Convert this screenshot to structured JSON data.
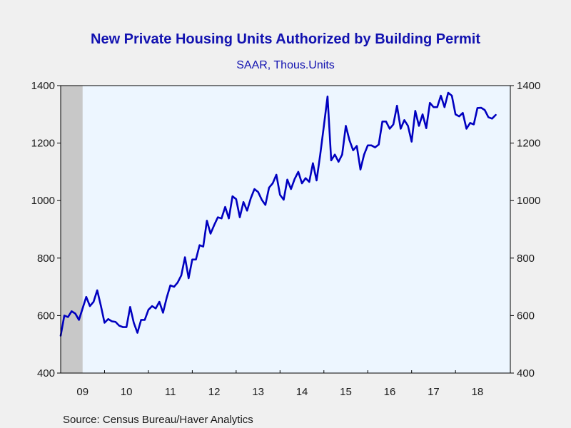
{
  "chart_data": {
    "type": "line",
    "title": "New Private Housing Units Authorized by Building Permit",
    "subtitle": "SAAR, Thous.Units",
    "source": "Source:  Census Bureau/Haver Analytics",
    "ylim": [
      400,
      1400
    ],
    "y_ticks": [
      400,
      600,
      800,
      1000,
      1200,
      1400
    ],
    "y_tick_labels": [
      "400",
      "600",
      "800",
      "1000",
      "1200",
      "1400"
    ],
    "x_range": [
      2009.0,
      2019.25
    ],
    "x_ticks": [
      {
        "label": "09",
        "year": 2009
      },
      {
        "label": "10",
        "year": 2010
      },
      {
        "label": "11",
        "year": 2011
      },
      {
        "label": "12",
        "year": 2012
      },
      {
        "label": "13",
        "year": 2013
      },
      {
        "label": "14",
        "year": 2014
      },
      {
        "label": "15",
        "year": 2015
      },
      {
        "label": "16",
        "year": 2016
      },
      {
        "label": "17",
        "year": 2017
      },
      {
        "label": "18",
        "year": 2018
      }
    ],
    "recession_shading": [
      2009.0,
      2009.5
    ],
    "grid": false,
    "series": [
      {
        "color": "#0000c0",
        "start": "2009-01",
        "frequency": "monthly",
        "values": [
          530,
          600,
          595,
          615,
          607,
          585,
          625,
          665,
          633,
          648,
          688,
          634,
          575,
          588,
          580,
          578,
          565,
          560,
          560,
          630,
          575,
          540,
          585,
          585,
          620,
          633,
          625,
          648,
          610,
          662,
          705,
          700,
          715,
          740,
          803,
          730,
          795,
          795,
          845,
          840,
          930,
          885,
          915,
          942,
          938,
          978,
          938,
          1015,
          1005,
          942,
          995,
          965,
          1008,
          1040,
          1030,
          1003,
          985,
          1045,
          1060,
          1090,
          1020,
          1003,
          1073,
          1040,
          1075,
          1100,
          1060,
          1078,
          1065,
          1130,
          1070,
          1160,
          1260,
          1362,
          1140,
          1160,
          1135,
          1160,
          1260,
          1210,
          1175,
          1190,
          1108,
          1160,
          1192,
          1192,
          1185,
          1195,
          1275,
          1275,
          1250,
          1265,
          1330,
          1250,
          1280,
          1260,
          1205,
          1312,
          1260,
          1300,
          1252,
          1340,
          1325,
          1325,
          1365,
          1325,
          1375,
          1365,
          1300,
          1293,
          1305,
          1250,
          1270,
          1265,
          1322,
          1323,
          1315,
          1290,
          1285,
          1298
        ]
      }
    ]
  }
}
